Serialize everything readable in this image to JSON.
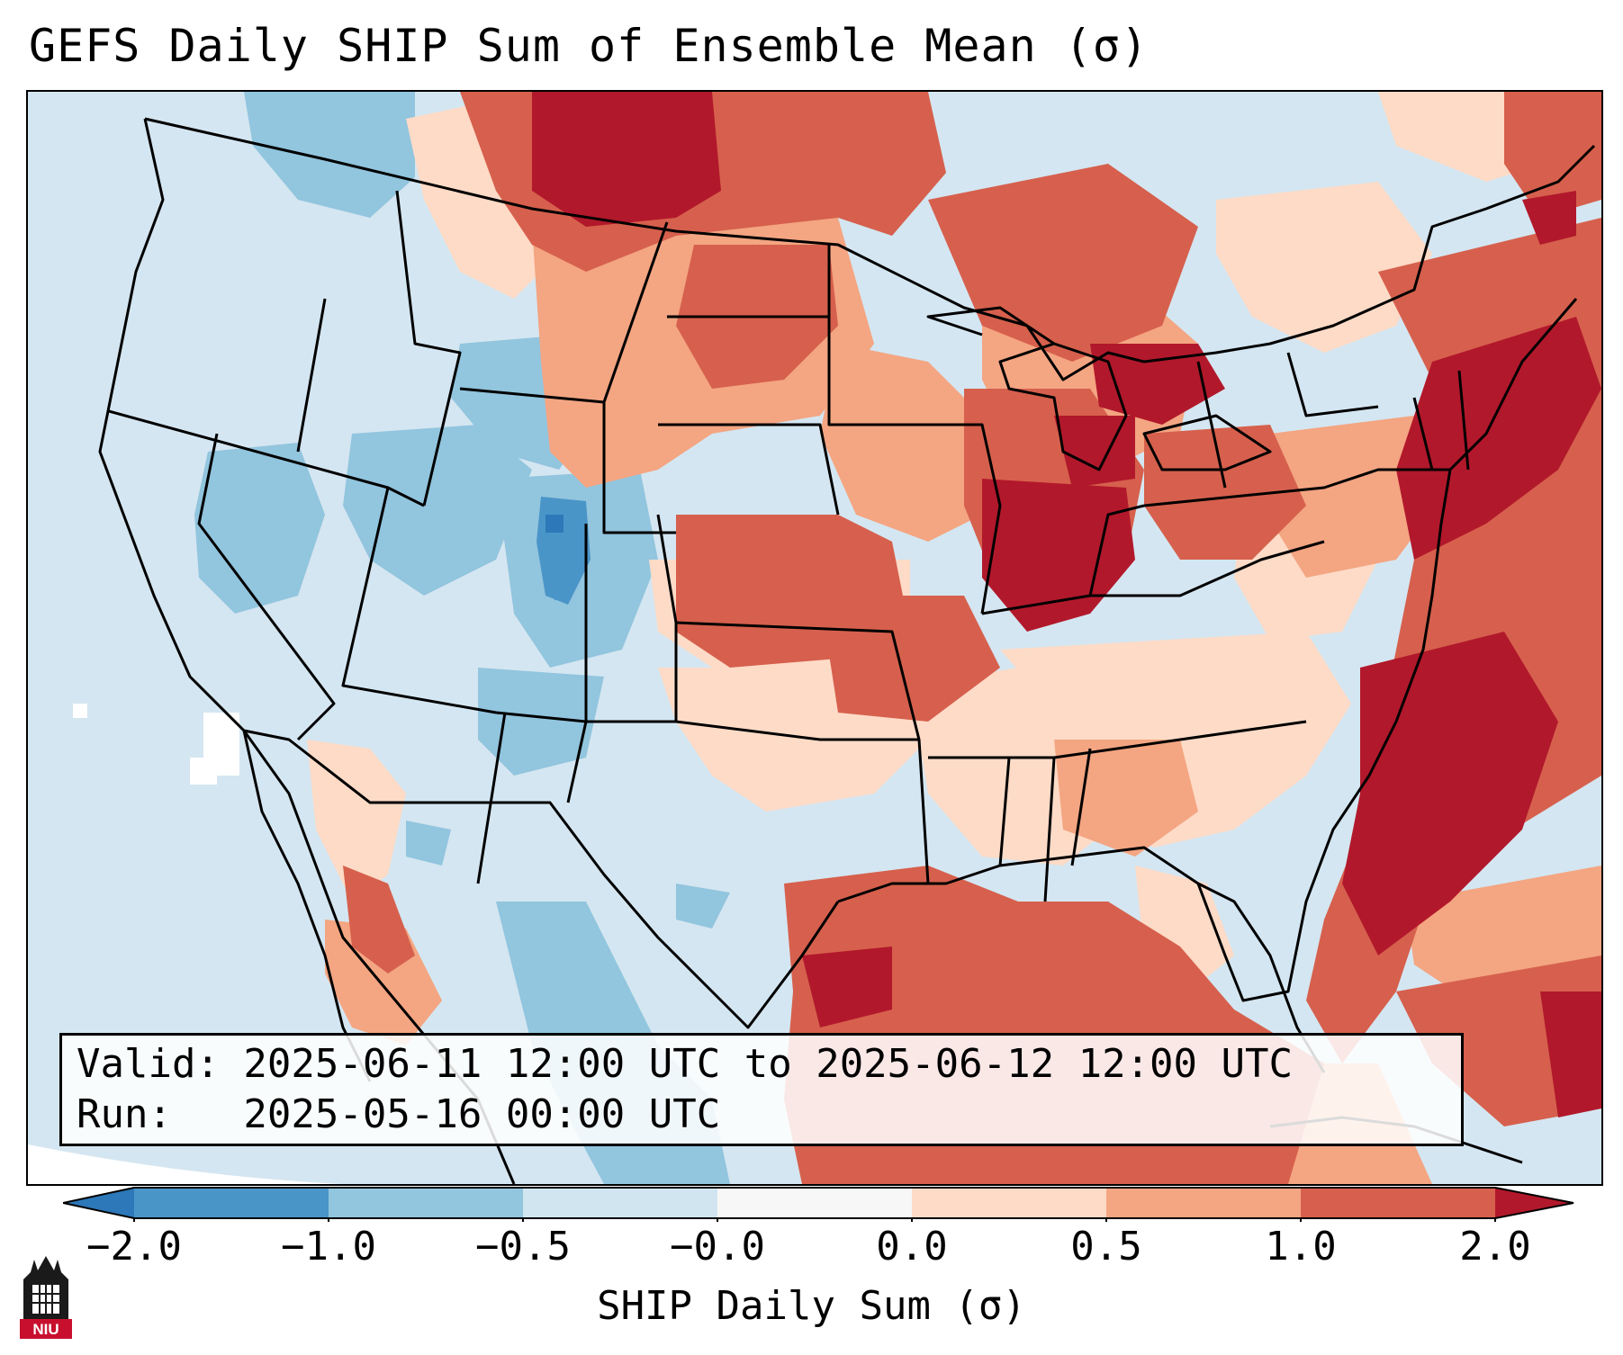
{
  "title": "GEFS Daily SHIP Sum of Ensemble Mean (σ)",
  "info": {
    "valid": "Valid: 2025-06-11 12:00 UTC to 2025-06-12 12:00 UTC",
    "run": "Run:   2025-05-16 00:00 UTC"
  },
  "colorbar": {
    "label": "SHIP Daily Sum (σ)",
    "ticks": [
      "−2.0",
      "−1.0",
      "−0.5",
      "−0.0",
      "0.0",
      "0.5",
      "1.0",
      "2.0"
    ],
    "colors": [
      "#2c78b8",
      "#4a95c8",
      "#92c5de",
      "#d1e5f0",
      "#f7f7f7",
      "#fddbc7",
      "#f4a582",
      "#d6604d",
      "#b2182b"
    ],
    "extend": "both"
  },
  "logo": {
    "text": "NIU",
    "icon": "university-tower-icon"
  },
  "map": {
    "region": "Continental United States",
    "projection": "lambert-conformal",
    "colors": {
      "strong_neg": "#2c78b8",
      "neg": "#4a95c8",
      "weak_neg": "#92c5de",
      "near_neg": "#d1e5f0",
      "near_pos": "#fddbc7",
      "weak_pos": "#f4a582",
      "pos": "#d6604d",
      "strong_pos": "#b2182b"
    }
  }
}
